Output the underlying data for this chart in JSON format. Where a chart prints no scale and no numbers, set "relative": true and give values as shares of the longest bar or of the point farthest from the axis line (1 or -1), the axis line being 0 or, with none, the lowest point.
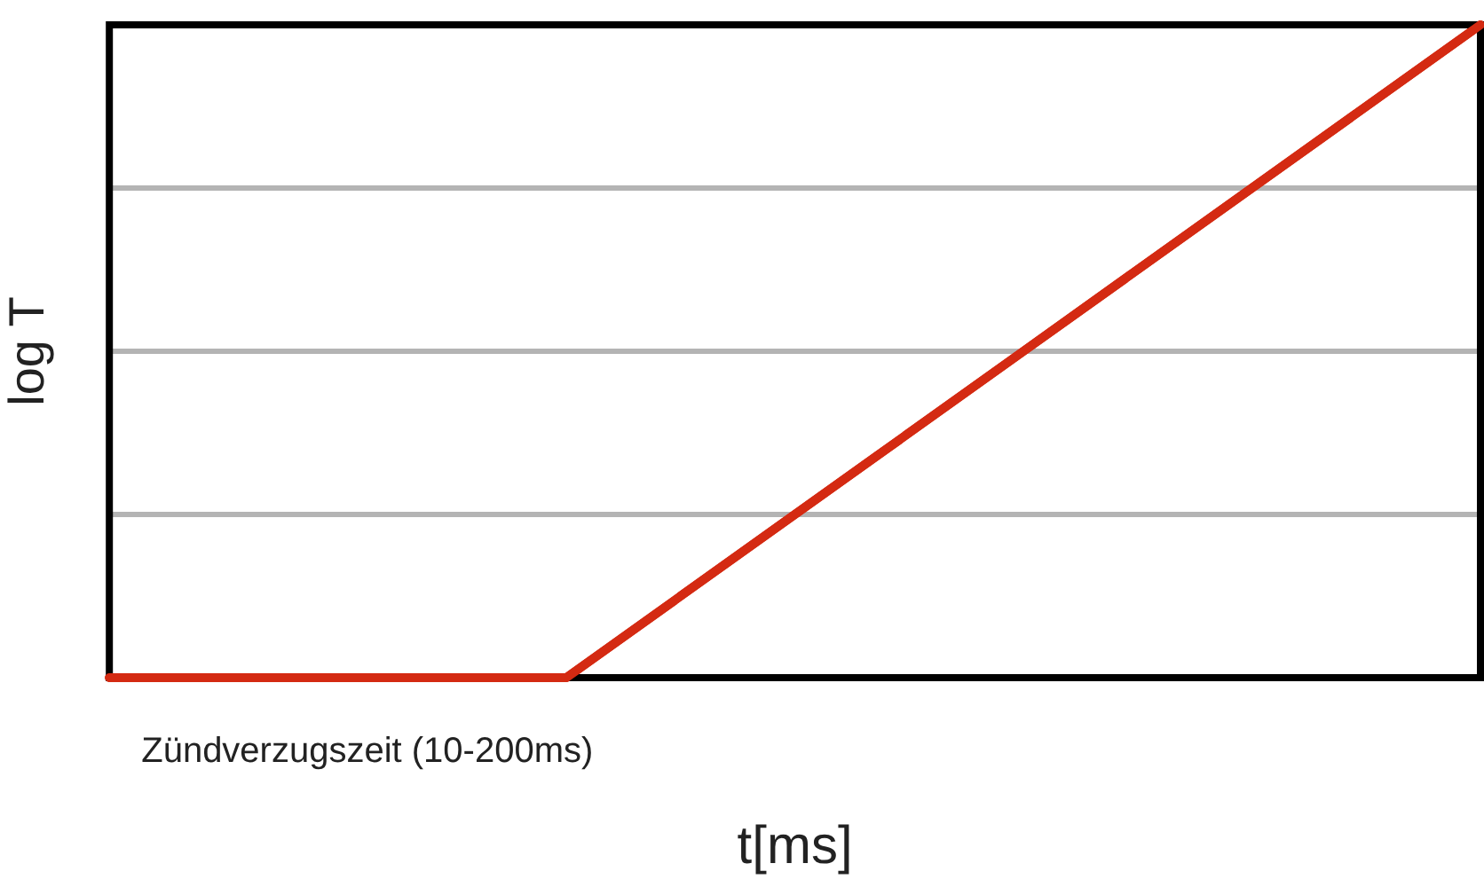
{
  "chart_data": {
    "type": "line",
    "relative": true,
    "xlabel": "t[ms]",
    "ylabel": "log T",
    "annotations": [
      "Zündverzugszeit (10-200ms)"
    ],
    "categories": [
      null,
      null,
      null,
      null
    ],
    "series": [
      {
        "color": "#d42a12",
        "values": [
          0,
          0,
          0.5,
          1
        ]
      }
    ],
    "grid": "y",
    "marker": "none",
    "line_style": "solid"
  }
}
